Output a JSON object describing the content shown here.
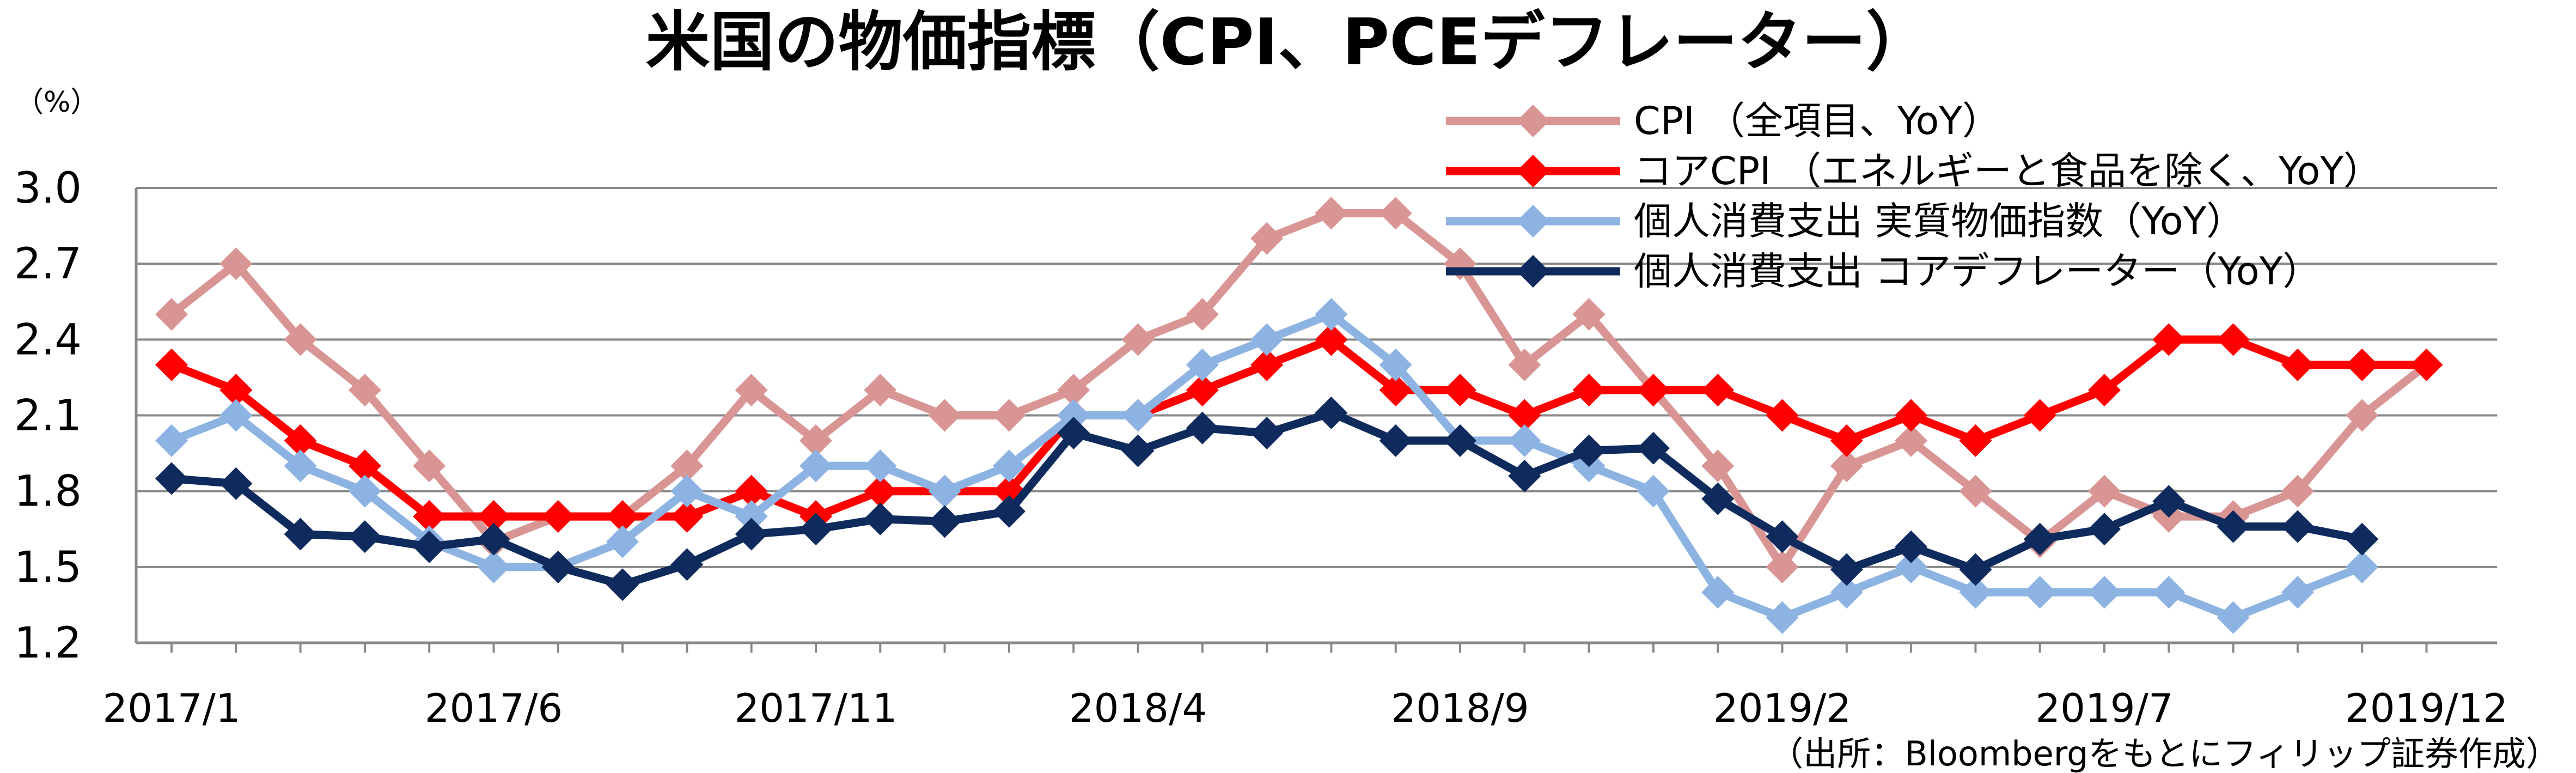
{
  "chart_data": {
    "type": "line",
    "title": "米国の物価指標（CPI、PCEデフレーター）",
    "ylabel": "（%）",
    "xlabel": "",
    "ylim": [
      1.2,
      3.0
    ],
    "yticks": [
      "3.0",
      "2.7",
      "2.4",
      "2.1",
      "1.8",
      "1.5",
      "1.2"
    ],
    "ytick_values": [
      3.0,
      2.7,
      2.4,
      2.1,
      1.8,
      1.5,
      1.2
    ],
    "xtick_labels": [
      "2017/1",
      "2017/6",
      "2017/11",
      "2018/4",
      "2018/9",
      "2019/2",
      "2019/7",
      "2019/12"
    ],
    "xtick_index": [
      0,
      5,
      10,
      15,
      20,
      25,
      30,
      35
    ],
    "categories": [
      "2017/1",
      "2017/2",
      "2017/3",
      "2017/4",
      "2017/5",
      "2017/6",
      "2017/7",
      "2017/8",
      "2017/9",
      "2017/10",
      "2017/11",
      "2017/12",
      "2018/1",
      "2018/2",
      "2018/3",
      "2018/4",
      "2018/5",
      "2018/6",
      "2018/7",
      "2018/8",
      "2018/9",
      "2018/10",
      "2018/11",
      "2018/12",
      "2019/1",
      "2019/2",
      "2019/3",
      "2019/4",
      "2019/5",
      "2019/6",
      "2019/7",
      "2019/8",
      "2019/9",
      "2019/10",
      "2019/11",
      "2019/12"
    ],
    "grid": "horizontal",
    "legend_position": "top-right",
    "source": "（出所：Bloombergをもとにフィリップ証券作成）",
    "series": [
      {
        "name": "CPI （全項目、YoY）",
        "color": "#d99594",
        "values": [
          2.5,
          2.7,
          2.4,
          2.2,
          1.9,
          1.6,
          1.7,
          1.7,
          1.9,
          2.2,
          2.0,
          2.2,
          2.1,
          2.1,
          2.2,
          2.4,
          2.5,
          2.8,
          2.9,
          2.9,
          2.7,
          2.3,
          2.5,
          2.2,
          1.9,
          1.5,
          1.9,
          2.0,
          1.8,
          1.6,
          1.8,
          1.7,
          1.7,
          1.8,
          2.1,
          2.3
        ]
      },
      {
        "name": "コアCPI （エネルギーと食品を除く、YoY）",
        "color": "#ff0000",
        "values": [
          2.3,
          2.2,
          2.0,
          1.9,
          1.7,
          1.7,
          1.7,
          1.7,
          1.7,
          1.8,
          1.7,
          1.8,
          1.8,
          1.8,
          2.1,
          2.1,
          2.2,
          2.3,
          2.4,
          2.2,
          2.2,
          2.1,
          2.2,
          2.2,
          2.2,
          2.1,
          2.0,
          2.1,
          2.0,
          2.1,
          2.2,
          2.4,
          2.4,
          2.3,
          2.3,
          2.3
        ]
      },
      {
        "name": "個人消費支出 実質物価指数（YoY）",
        "color": "#8db3e2",
        "values": [
          2.0,
          2.1,
          1.9,
          1.8,
          1.6,
          1.5,
          1.5,
          1.6,
          1.8,
          1.7,
          1.9,
          1.9,
          1.8,
          1.9,
          2.1,
          2.1,
          2.3,
          2.4,
          2.5,
          2.3,
          2.0,
          2.0,
          1.9,
          1.8,
          1.4,
          1.3,
          1.4,
          1.5,
          1.4,
          1.4,
          1.4,
          1.4,
          1.3,
          1.4,
          1.5,
          null
        ]
      },
      {
        "name": "個人消費支出 コアデフレーター（YoY）",
        "color": "#0f2a5c",
        "values": [
          1.85,
          1.83,
          1.63,
          1.62,
          1.58,
          1.61,
          1.5,
          1.43,
          1.51,
          1.63,
          1.65,
          1.69,
          1.68,
          1.72,
          2.03,
          1.96,
          2.05,
          2.03,
          2.11,
          2.0,
          2.0,
          1.86,
          1.96,
          1.97,
          1.77,
          1.62,
          1.49,
          1.58,
          1.49,
          1.61,
          1.65,
          1.76,
          1.66,
          1.66,
          1.61,
          null
        ]
      }
    ]
  }
}
